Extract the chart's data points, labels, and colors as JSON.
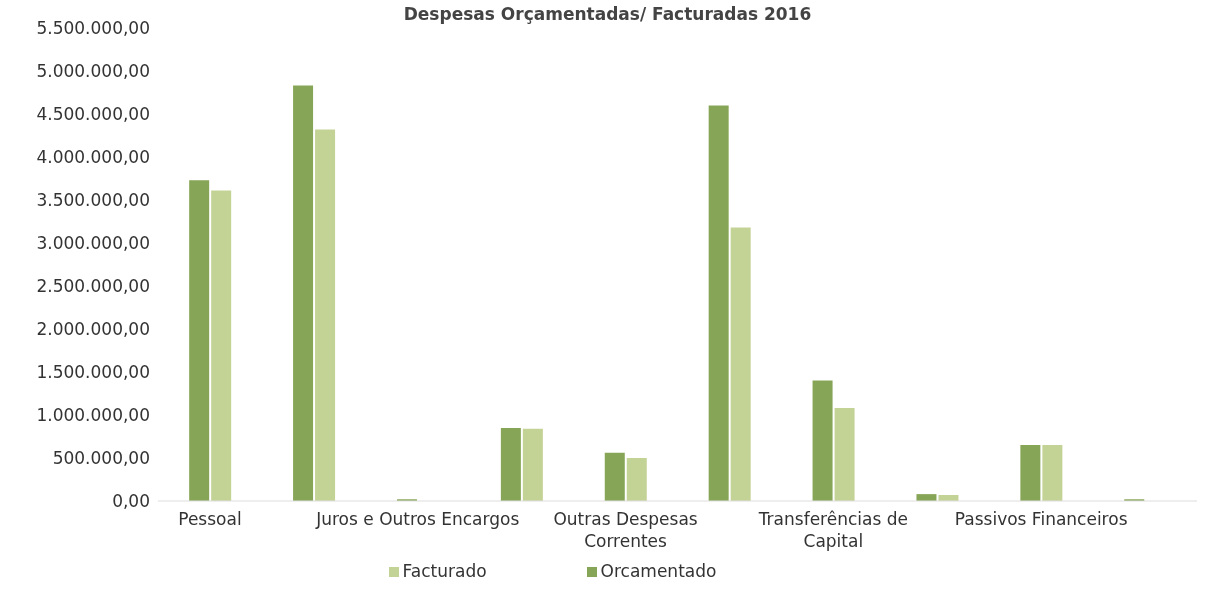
{
  "chart_data": {
    "type": "bar",
    "title": "Despesas Orçamentadas/ Facturadas 2016",
    "categories": [
      "Pessoal",
      null,
      "Juros e Outros Encargos",
      null,
      "Outras Despesas Correntes",
      null,
      "Transferências de Capital",
      null,
      "Passivos Financeiros",
      null
    ],
    "series": [
      {
        "name": "Orcamentado",
        "color": "#86a556",
        "values": [
          3730000,
          4830000,
          20000,
          850000,
          560000,
          4600000,
          1400000,
          80000,
          650000,
          20000
        ]
      },
      {
        "name": "Facturado",
        "color": "#c3d396",
        "values": [
          3610000,
          4320000,
          null,
          840000,
          500000,
          3180000,
          1080000,
          70000,
          650000,
          null
        ]
      }
    ],
    "ylim": [
      0,
      5500000
    ],
    "yticks": [
      {
        "value": 0,
        "label": "0,00"
      },
      {
        "value": 500000,
        "label": "500.000,00"
      },
      {
        "value": 1000000,
        "label": "1.000.000,00"
      },
      {
        "value": 1500000,
        "label": "1.500.000,00"
      },
      {
        "value": 2000000,
        "label": "2.000.000,00"
      },
      {
        "value": 2500000,
        "label": "2.500.000,00"
      },
      {
        "value": 3000000,
        "label": "3.000.000,00"
      },
      {
        "value": 3500000,
        "label": "3.500.000,00"
      },
      {
        "value": 4000000,
        "label": "4.000.000,00"
      },
      {
        "value": 4500000,
        "label": "4.500.000,00"
      },
      {
        "value": 5000000,
        "label": "5.000.000,00"
      },
      {
        "value": 5500000,
        "label": "5.500.000,00"
      }
    ],
    "grid": false,
    "legend": "bottom"
  }
}
